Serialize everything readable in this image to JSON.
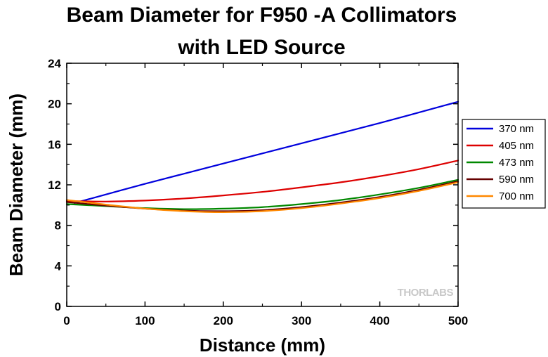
{
  "chart_data": {
    "type": "line",
    "title_line1": "Beam Diameter for F950 -A Collimators",
    "title_line2": "with LED Source",
    "xlabel": "Distance (mm)",
    "ylabel": "Beam Diameter (mm)",
    "xlim": [
      0,
      500
    ],
    "ylim": [
      0,
      24
    ],
    "xticks": [
      0,
      100,
      200,
      300,
      400,
      500
    ],
    "yticks": [
      0,
      4,
      8,
      12,
      16,
      20,
      24
    ],
    "grid": false,
    "legend_position": "right",
    "watermark": "THORLABS",
    "series": [
      {
        "name": "370 nm",
        "color": "#0000dd",
        "x": [
          10,
          100,
          200,
          300,
          400,
          500
        ],
        "y": [
          10.2,
          12.1,
          14.1,
          16.1,
          18.1,
          20.2
        ]
      },
      {
        "name": "405 nm",
        "color": "#dd0000",
        "x": [
          0,
          50,
          100,
          150,
          200,
          250,
          300,
          350,
          400,
          450,
          500
        ],
        "y": [
          10.4,
          10.35,
          10.45,
          10.65,
          10.95,
          11.3,
          11.75,
          12.25,
          12.85,
          13.55,
          14.4
        ]
      },
      {
        "name": "473 nm",
        "color": "#008800",
        "x": [
          0,
          50,
          100,
          150,
          200,
          250,
          300,
          350,
          400,
          450,
          500
        ],
        "y": [
          10.1,
          9.9,
          9.7,
          9.6,
          9.65,
          9.8,
          10.1,
          10.5,
          11.05,
          11.7,
          12.5
        ]
      },
      {
        "name": "590 nm",
        "color": "#660000",
        "x": [
          0,
          50,
          100,
          150,
          200,
          250,
          300,
          350,
          400,
          450,
          500
        ],
        "y": [
          10.3,
          9.95,
          9.65,
          9.45,
          9.4,
          9.5,
          9.8,
          10.25,
          10.8,
          11.5,
          12.35
        ]
      },
      {
        "name": "700 nm",
        "color": "#ff8800",
        "x": [
          0,
          50,
          100,
          150,
          200,
          250,
          300,
          350,
          400,
          450,
          500
        ],
        "y": [
          10.5,
          10.05,
          9.65,
          9.4,
          9.3,
          9.4,
          9.7,
          10.15,
          10.7,
          11.4,
          12.25
        ]
      }
    ]
  }
}
